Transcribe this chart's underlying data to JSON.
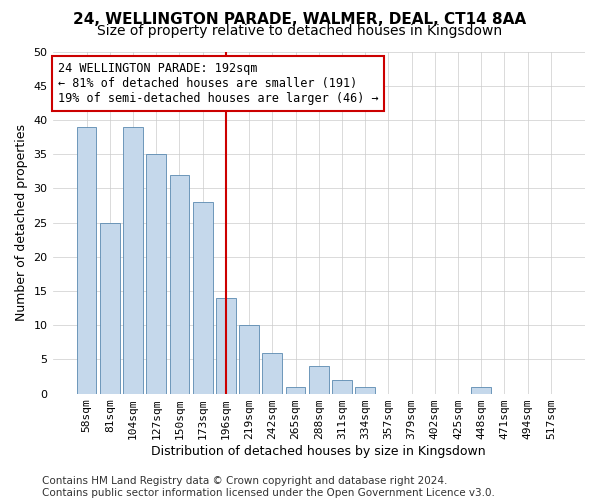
{
  "title": "24, WELLINGTON PARADE, WALMER, DEAL, CT14 8AA",
  "subtitle": "Size of property relative to detached houses in Kingsdown",
  "xlabel": "Distribution of detached houses by size in Kingsdown",
  "ylabel": "Number of detached properties",
  "categories": [
    "58sqm",
    "81sqm",
    "104sqm",
    "127sqm",
    "150sqm",
    "173sqm",
    "196sqm",
    "219sqm",
    "242sqm",
    "265sqm",
    "288sqm",
    "311sqm",
    "334sqm",
    "357sqm",
    "379sqm",
    "402sqm",
    "425sqm",
    "448sqm",
    "471sqm",
    "494sqm",
    "517sqm"
  ],
  "values": [
    39,
    25,
    39,
    35,
    32,
    28,
    14,
    10,
    6,
    1,
    4,
    2,
    1,
    0,
    0,
    0,
    0,
    1,
    0,
    0,
    0
  ],
  "bar_color": "#c5d8eb",
  "bar_edge_color": "#5a8ab0",
  "vline_x_index": 6,
  "vline_color": "#cc0000",
  "annotation_text": "24 WELLINGTON PARADE: 192sqm\n← 81% of detached houses are smaller (191)\n19% of semi-detached houses are larger (46) →",
  "annotation_box_color": "#ffffff",
  "annotation_box_edge_color": "#cc0000",
  "ylim": [
    0,
    50
  ],
  "yticks": [
    0,
    5,
    10,
    15,
    20,
    25,
    30,
    35,
    40,
    45,
    50
  ],
  "footnote": "Contains HM Land Registry data © Crown copyright and database right 2024.\nContains public sector information licensed under the Open Government Licence v3.0.",
  "title_fontsize": 11,
  "subtitle_fontsize": 10,
  "xlabel_fontsize": 9,
  "ylabel_fontsize": 9,
  "tick_fontsize": 8,
  "annotation_fontsize": 8.5,
  "footnote_fontsize": 7.5,
  "background_color": "#ffffff",
  "grid_color": "#cccccc"
}
